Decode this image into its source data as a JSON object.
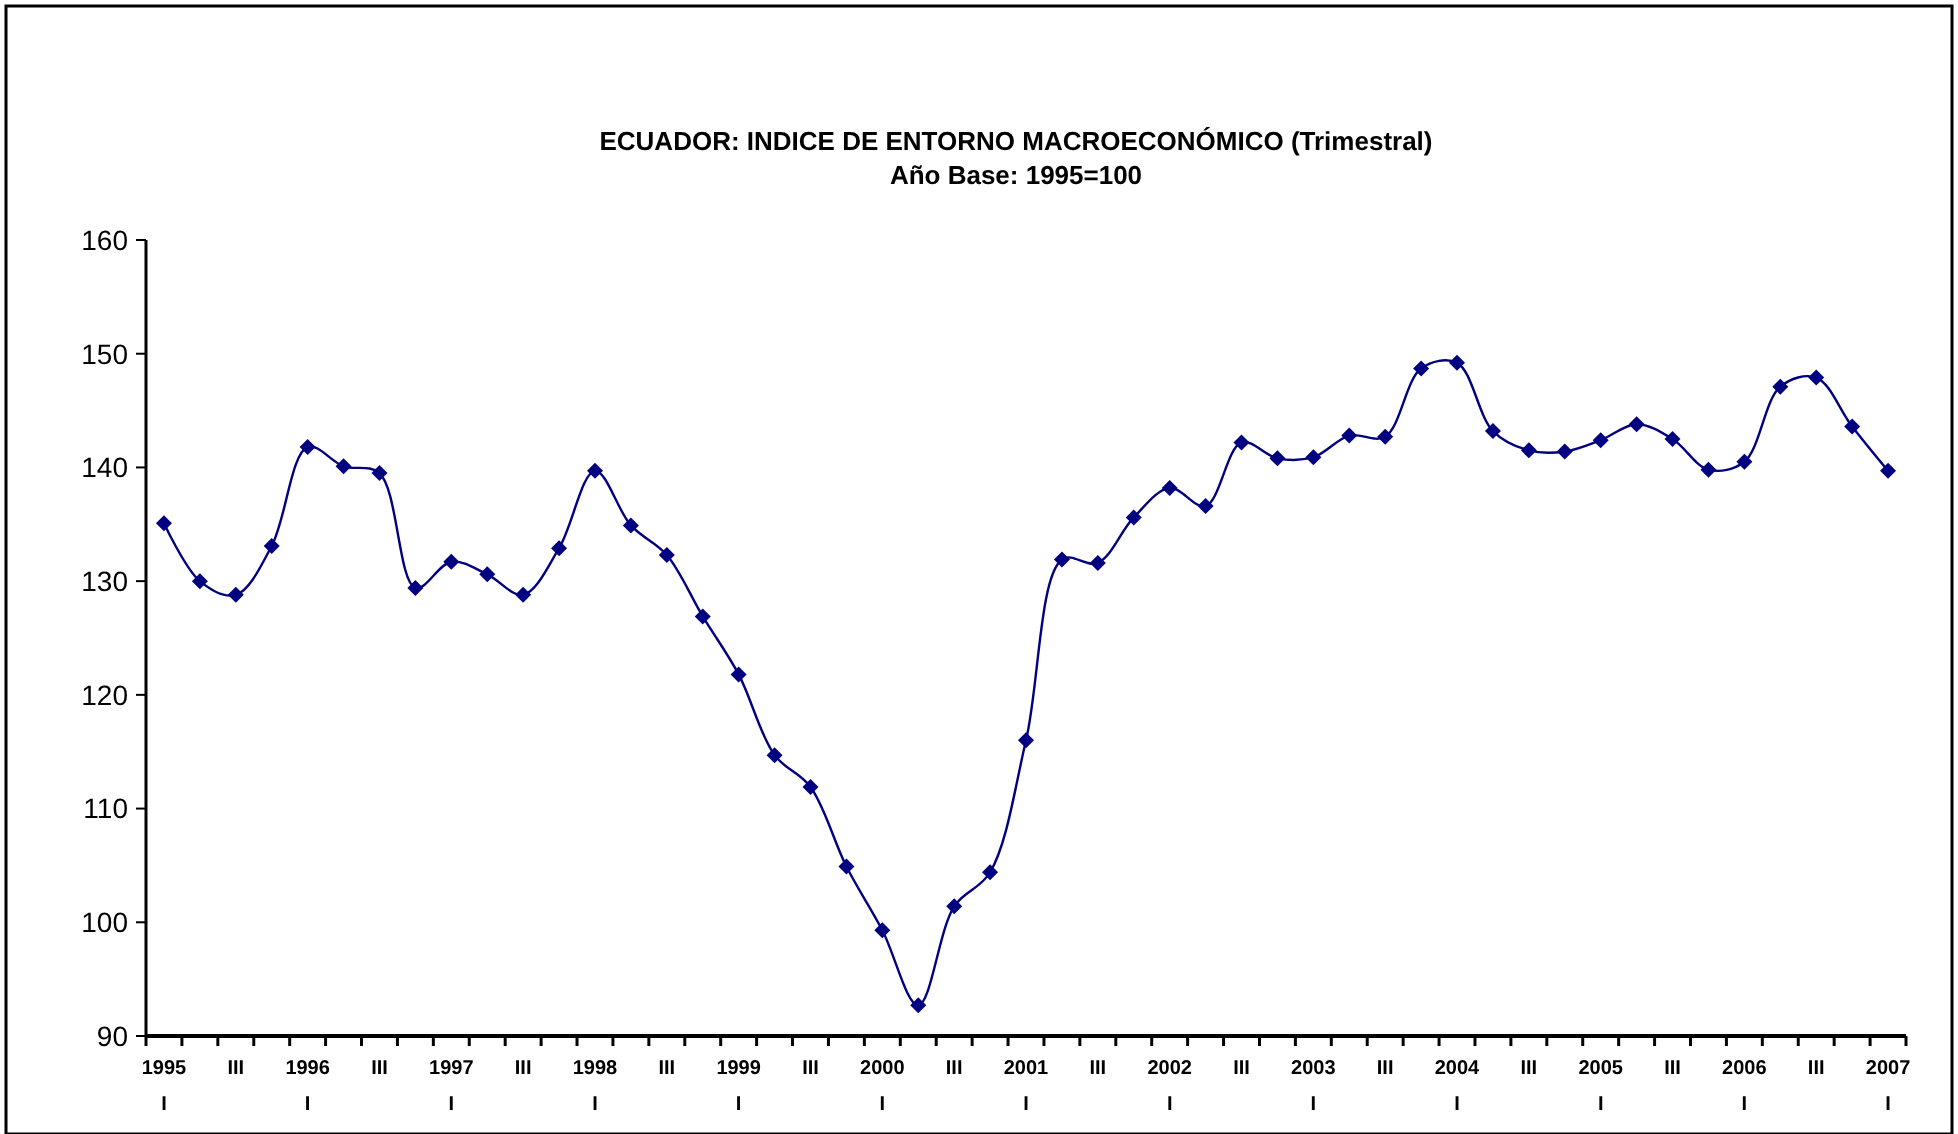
{
  "chart_data": {
    "type": "line",
    "title": "ECUADOR: INDICE DE ENTORNO MACROECONÓMICO (Trimestral)",
    "subtitle": "Año Base: 1995=100",
    "categories": [
      "1995\nI",
      null,
      "III",
      null,
      "1996\nI",
      null,
      "III",
      null,
      "1997\nI",
      null,
      "III",
      null,
      "1998\nI",
      null,
      "III",
      null,
      "1999\nI",
      null,
      "III",
      null,
      "2000\nI",
      null,
      "III",
      null,
      "2001\nI",
      null,
      "III",
      null,
      "2002\nI",
      null,
      "III",
      null,
      "2003\nI",
      null,
      "III",
      null,
      "2004\nI",
      null,
      "III",
      null,
      "2005\nI",
      null,
      "III",
      null,
      "2006\nI",
      null,
      "III",
      null,
      "2007\nI"
    ],
    "series": [
      {
        "color": "#000080",
        "values": [
          135.1,
          130.0,
          128.8,
          133.1,
          141.8,
          140.1,
          139.5,
          129.4,
          131.7,
          130.6,
          128.8,
          132.9,
          139.7,
          134.9,
          132.3,
          126.9,
          121.8,
          114.7,
          111.9,
          104.9,
          99.3,
          92.7,
          101.4,
          104.4,
          116.0,
          131.9,
          131.6,
          135.6,
          138.2,
          136.6,
          142.2,
          140.8,
          140.9,
          142.8,
          142.7,
          148.7,
          149.2,
          143.2,
          141.5,
          141.4,
          142.4,
          143.8,
          142.5,
          139.8,
          140.5,
          147.1,
          147.9,
          143.6,
          139.7
        ]
      }
    ],
    "ylim": [
      90,
      160
    ],
    "yticks": [
      90,
      100,
      110,
      120,
      130,
      140,
      150,
      160
    ],
    "grid": false,
    "marker": "diamond",
    "line_style": "solid"
  }
}
